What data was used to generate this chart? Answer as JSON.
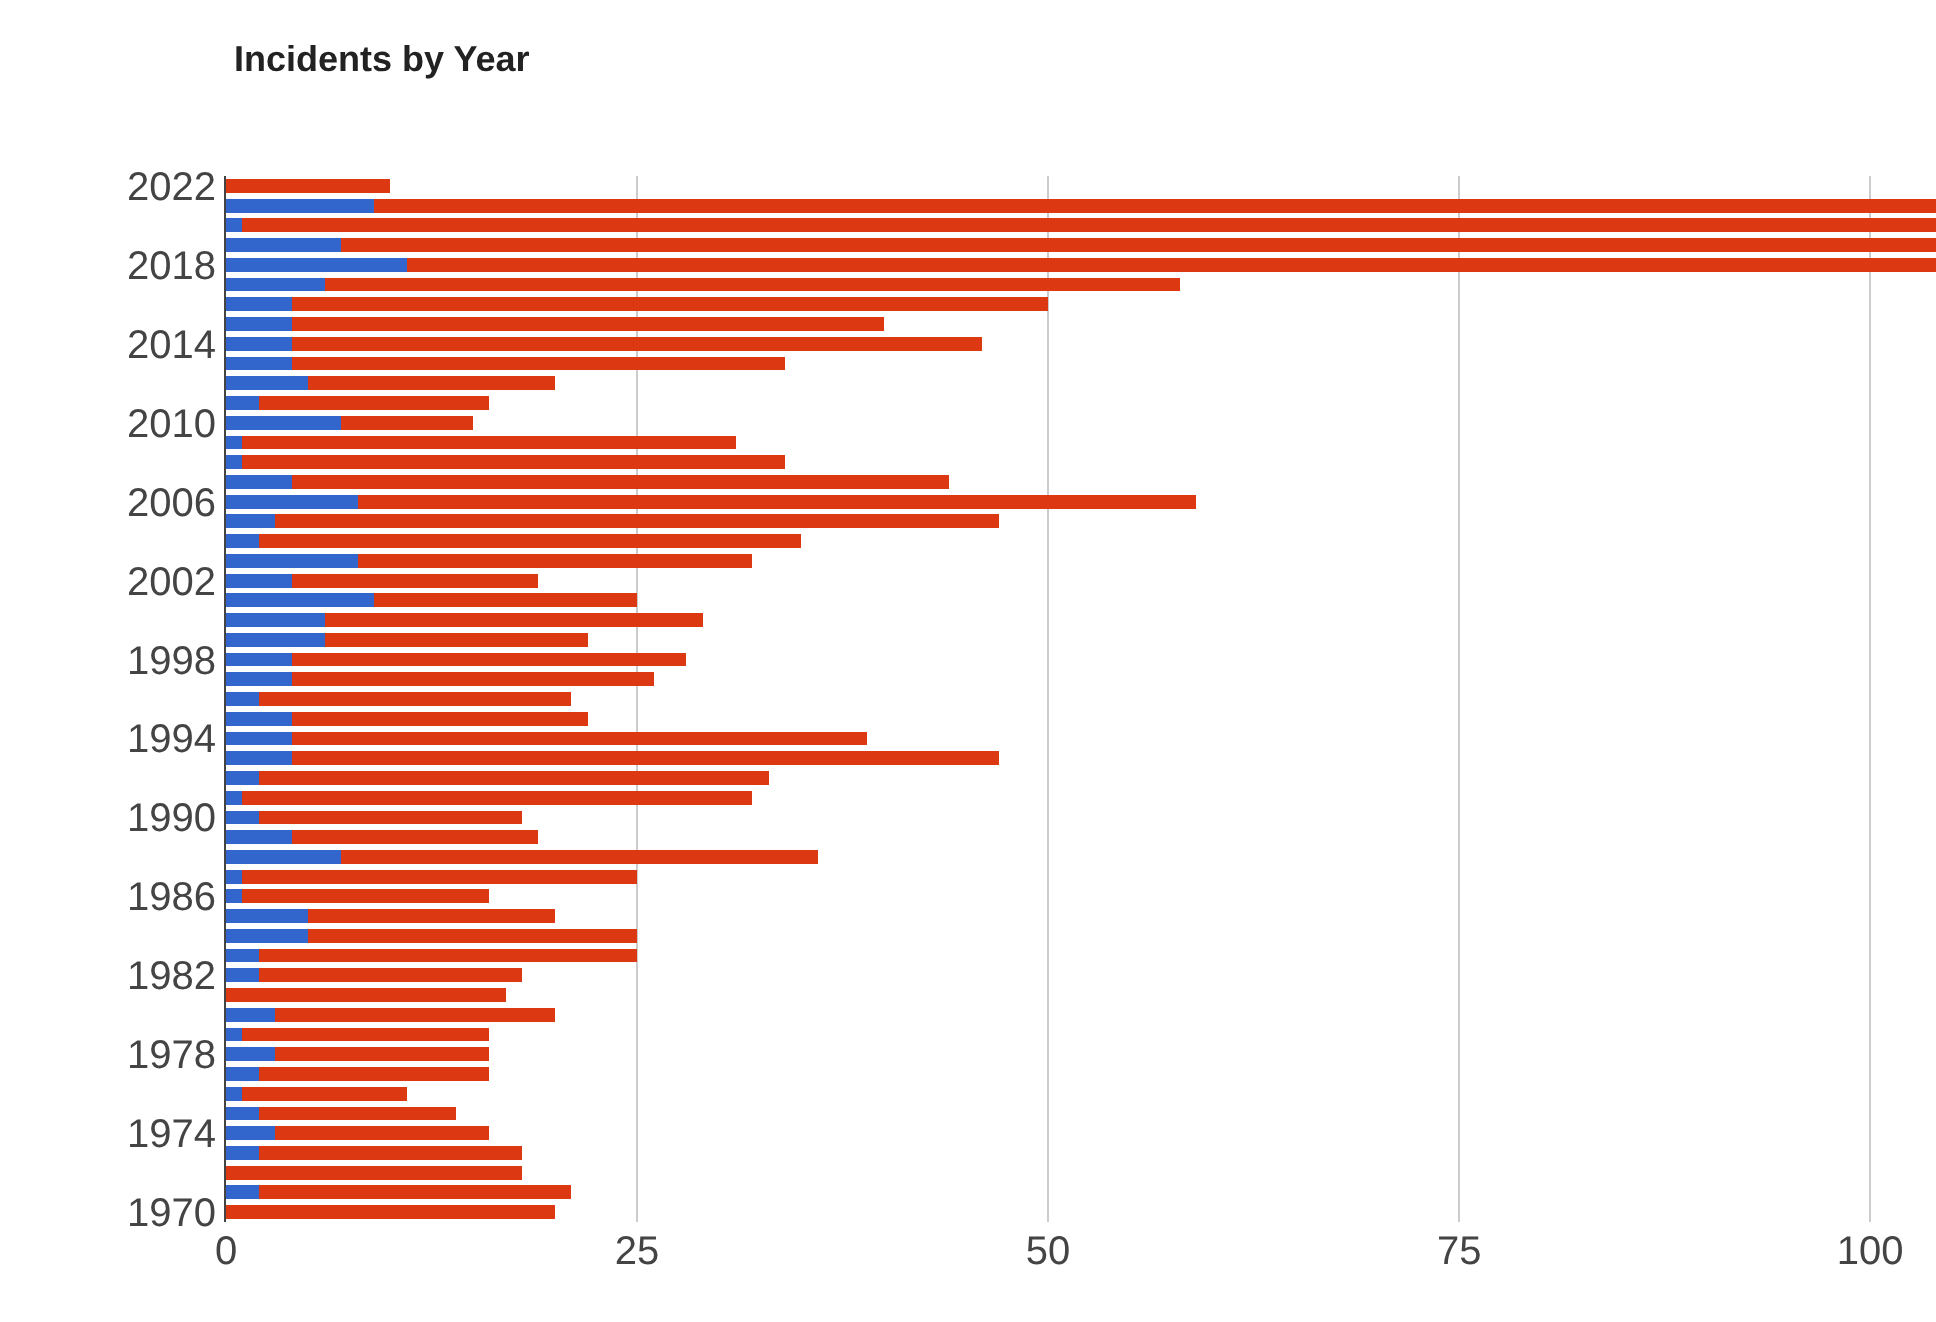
{
  "chart_data": {
    "type": "bar",
    "orientation": "horizontal",
    "stacked": true,
    "title": "Incidents by Year",
    "categories": [
      "2022",
      null,
      null,
      null,
      "2018",
      null,
      null,
      null,
      "2014",
      null,
      null,
      null,
      "2010",
      null,
      null,
      null,
      "2006",
      null,
      null,
      null,
      "2002",
      null,
      null,
      null,
      "1998",
      null,
      null,
      null,
      "1994",
      null,
      null,
      null,
      "1990",
      null,
      null,
      null,
      "1986",
      null,
      null,
      null,
      "1982",
      null,
      null,
      null,
      "1978",
      null,
      null,
      null,
      "1974",
      null,
      null,
      null,
      "1970"
    ],
    "series": [
      {
        "color": "#3366cc",
        "values": [
          0,
          9,
          1,
          7,
          11,
          6,
          4,
          4,
          4,
          4,
          5,
          2,
          7,
          1,
          1,
          4,
          8,
          3,
          2,
          8,
          4,
          9,
          6,
          6,
          4,
          4,
          2,
          4,
          4,
          4,
          2,
          1,
          2,
          4,
          7,
          1,
          1,
          5,
          5,
          2,
          2,
          0,
          3,
          1,
          3,
          2,
          1,
          2,
          3,
          2,
          0,
          2,
          0
        ]
      },
      {
        "color": "#dc3912",
        "values": [
          10,
          95,
          103,
          97,
          93,
          52,
          46,
          36,
          42,
          30,
          15,
          14,
          8,
          30,
          33,
          40,
          51,
          44,
          33,
          24,
          15,
          16,
          23,
          16,
          24,
          22,
          19,
          18,
          35,
          43,
          31,
          31,
          16,
          15,
          29,
          24,
          15,
          15,
          20,
          23,
          16,
          17,
          17,
          15,
          13,
          14,
          10,
          12,
          13,
          16,
          18,
          19,
          20
        ]
      }
    ],
    "xlim": [
      0,
      104
    ],
    "xticks": [
      0,
      25,
      50,
      75,
      100
    ],
    "grid": "x"
  }
}
